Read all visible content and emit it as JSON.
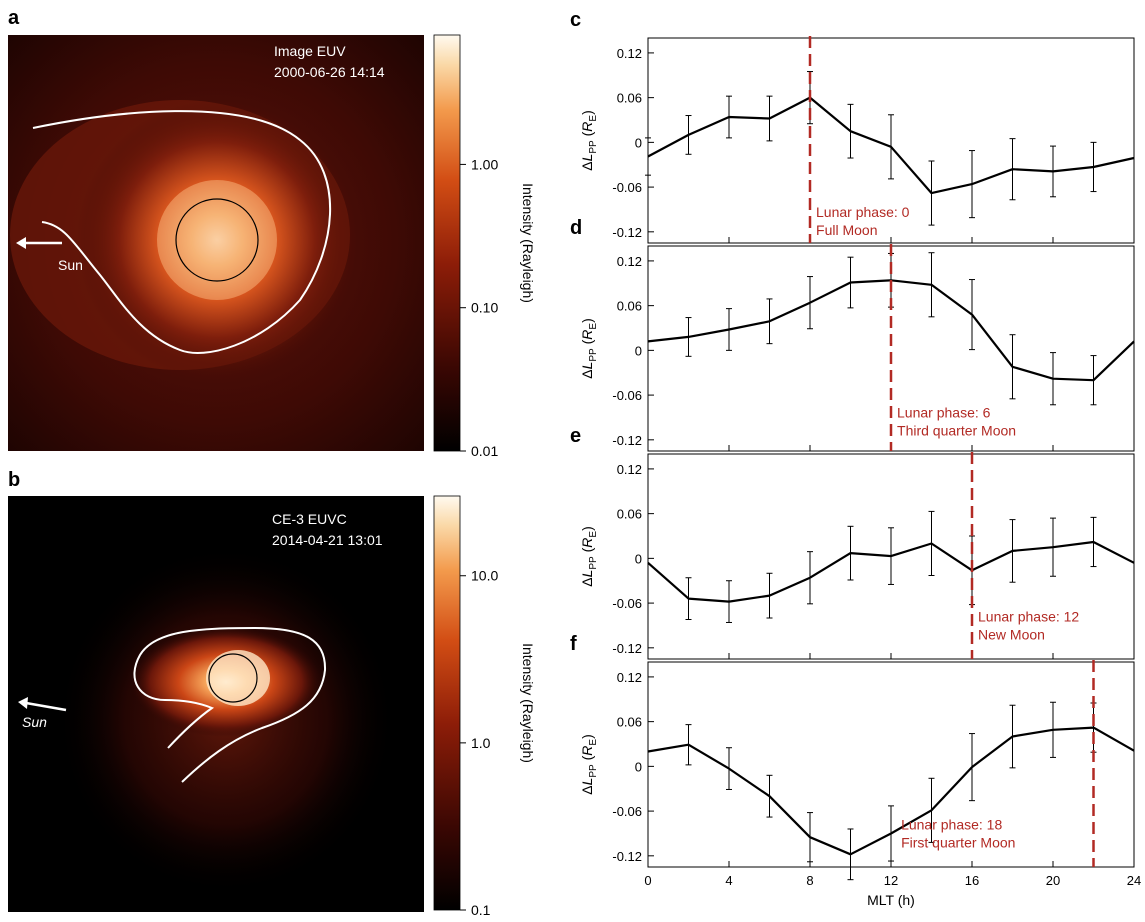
{
  "images": [
    {
      "panel_label": "a",
      "instrument": "Image EUV",
      "datetime": "2000-06-26 14:14",
      "sun_label": "Sun",
      "colorbar": {
        "label": "Intensity (Rayleigh)",
        "scale": "log",
        "colormap": "dark-red-to-white",
        "ticks": [
          {
            "value": 0.01,
            "label": "0.01"
          },
          {
            "value": 0.1,
            "label": "0.10"
          },
          {
            "value": 1,
            "label": "1.00"
          }
        ],
        "range": [
          0.01,
          8
        ]
      }
    },
    {
      "panel_label": "b",
      "instrument": "CE-3 EUVC",
      "datetime": "2014-04-21 13:01",
      "sun_label": "Sun",
      "colorbar": {
        "label": "Intensity (Rayleigh)",
        "scale": "log",
        "colormap": "dark-red-to-white",
        "ticks": [
          {
            "value": 0.1,
            "label": "0.1"
          },
          {
            "value": 1,
            "label": "1.0"
          },
          {
            "value": 10,
            "label": "10.0"
          }
        ],
        "range": [
          0.1,
          30
        ]
      }
    }
  ],
  "chart_data": [
    {
      "type": "line",
      "panel_label": "c",
      "xlabel": "MLT (h)",
      "ylabel": "ΔL_PP (R_E)",
      "xlim": [
        0,
        24
      ],
      "ylim": [
        -0.135,
        0.14
      ],
      "x_ticks": [
        0,
        4,
        8,
        12,
        16,
        20,
        24
      ],
      "y_ticks": [
        -0.12,
        -0.06,
        0,
        0.06,
        0.12
      ],
      "x": [
        0,
        2,
        4,
        6,
        8,
        10,
        12,
        14,
        16,
        18,
        20,
        22,
        24
      ],
      "values": [
        -0.019,
        0.01,
        0.034,
        0.032,
        0.06,
        0.015,
        -0.006,
        -0.068,
        -0.056,
        -0.036,
        -0.039,
        -0.033,
        -0.021
      ],
      "errors": [
        0.025,
        0.026,
        0.028,
        0.03,
        0.035,
        0.036,
        0.043,
        0.043,
        0.045,
        0.041,
        0.034,
        0.033,
        0.0
      ],
      "marker_mlt": 8,
      "annotation_line1": "Lunar phase: 0",
      "annotation_line2": "Full Moon",
      "annotation_x": 8.1,
      "annotation_y": -0.1,
      "show_xtick_labels": false,
      "color": "#000000",
      "marker_color": "#b22a24"
    },
    {
      "type": "line",
      "panel_label": "d",
      "xlabel": "MLT (h)",
      "ylabel": "ΔL_PP (R_E)",
      "xlim": [
        0,
        24
      ],
      "ylim": [
        -0.135,
        0.14
      ],
      "x_ticks": [
        0,
        4,
        8,
        12,
        16,
        20,
        24
      ],
      "y_ticks": [
        -0.12,
        -0.06,
        0,
        0.06,
        0.12
      ],
      "x": [
        0,
        2,
        4,
        6,
        8,
        10,
        12,
        14,
        16,
        18,
        20,
        22,
        24
      ],
      "values": [
        0.012,
        0.018,
        0.028,
        0.039,
        0.064,
        0.091,
        0.094,
        0.088,
        0.048,
        -0.022,
        -0.038,
        -0.04,
        0.012
      ],
      "errors": [
        0.0,
        0.026,
        0.028,
        0.03,
        0.035,
        0.034,
        0.036,
        0.043,
        0.047,
        0.043,
        0.035,
        0.033,
        0.0
      ],
      "marker_mlt": 12,
      "annotation_line1": "Lunar phase: 6",
      "annotation_line2": "Third quarter Moon",
      "annotation_x": 12.1,
      "annotation_y": -0.09,
      "show_xtick_labels": false,
      "color": "#000000",
      "marker_color": "#b22a24"
    },
    {
      "type": "line",
      "panel_label": "e",
      "xlabel": "MLT (h)",
      "ylabel": "ΔL_PP (R_E)",
      "xlim": [
        0,
        24
      ],
      "ylim": [
        -0.135,
        0.14
      ],
      "x_ticks": [
        0,
        4,
        8,
        12,
        16,
        20,
        24
      ],
      "y_ticks": [
        -0.12,
        -0.06,
        0,
        0.06,
        0.12
      ],
      "x": [
        0,
        2,
        4,
        6,
        8,
        10,
        12,
        14,
        16,
        18,
        20,
        22,
        24
      ],
      "values": [
        -0.006,
        -0.054,
        -0.058,
        -0.05,
        -0.026,
        0.007,
        0.003,
        0.02,
        -0.016,
        0.01,
        0.015,
        0.022,
        -0.006
      ],
      "errors": [
        0.0,
        0.028,
        0.028,
        0.03,
        0.035,
        0.036,
        0.038,
        0.043,
        0.046,
        0.042,
        0.039,
        0.033,
        0.0
      ],
      "marker_mlt": 16,
      "annotation_line1": "Lunar phase: 12",
      "annotation_line2": "New Moon",
      "annotation_x": 16.1,
      "annotation_y": -0.085,
      "show_xtick_labels": false,
      "color": "#000000",
      "marker_color": "#b22a24"
    },
    {
      "type": "line",
      "panel_label": "f",
      "xlabel": "MLT (h)",
      "ylabel": "ΔL_PP (R_E)",
      "xlim": [
        0,
        24
      ],
      "ylim": [
        -0.135,
        0.14
      ],
      "x_ticks": [
        0,
        4,
        8,
        12,
        16,
        20,
        24
      ],
      "y_ticks": [
        -0.12,
        -0.06,
        0,
        0.06,
        0.12
      ],
      "x": [
        0,
        2,
        4,
        6,
        8,
        10,
        12,
        14,
        16,
        18,
        20,
        22,
        24
      ],
      "values": [
        0.02,
        0.029,
        -0.003,
        -0.04,
        -0.095,
        -0.118,
        -0.09,
        -0.059,
        -0.001,
        0.04,
        0.049,
        0.052,
        0.021
      ],
      "errors": [
        0.0,
        0.027,
        0.028,
        0.028,
        0.033,
        0.034,
        0.037,
        0.043,
        0.045,
        0.042,
        0.037,
        0.033,
        0.0
      ],
      "marker_mlt": 22,
      "annotation_line1": "Lunar phase: 18",
      "annotation_line2": "First quarter Moon",
      "annotation_x": 12.3,
      "annotation_y": -0.085,
      "show_xtick_labels": true,
      "color": "#000000",
      "marker_color": "#b22a24"
    }
  ]
}
